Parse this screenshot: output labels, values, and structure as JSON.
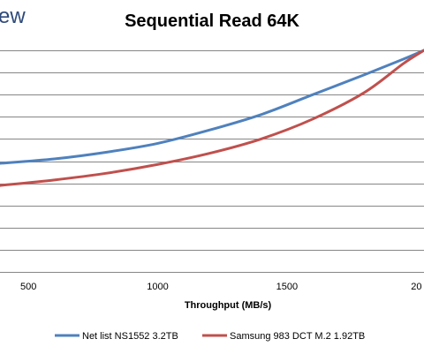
{
  "brand_fragment": "ew",
  "chart_data": {
    "type": "line",
    "title": "Sequential Read 64K",
    "xlabel": "Throughput (MB/s)",
    "ylabel": "",
    "x_ticks": [
      500,
      1000,
      1500,
      "20"
    ],
    "xlim": [
      390,
      2030
    ],
    "ylim": [
      0,
      10
    ],
    "grid": true,
    "legend_position": "bottom",
    "series": [
      {
        "name": "Net list NS1552 3.2TB",
        "color": "#4f81bd",
        "x": [
          390,
          600,
          800,
          1000,
          1200,
          1400,
          1600,
          1800,
          1950,
          2030
        ],
        "y": [
          4.9,
          5.1,
          5.4,
          5.8,
          6.4,
          7.1,
          8.0,
          8.9,
          9.6,
          10.0
        ]
      },
      {
        "name": "Samsung 983 DCT M.2 1.92TB",
        "color": "#c0504d",
        "x": [
          390,
          600,
          800,
          1000,
          1200,
          1400,
          1600,
          1800,
          1950,
          2030
        ],
        "y": [
          3.9,
          4.15,
          4.45,
          4.85,
          5.35,
          6.0,
          6.9,
          8.1,
          9.4,
          10.0
        ]
      }
    ]
  }
}
